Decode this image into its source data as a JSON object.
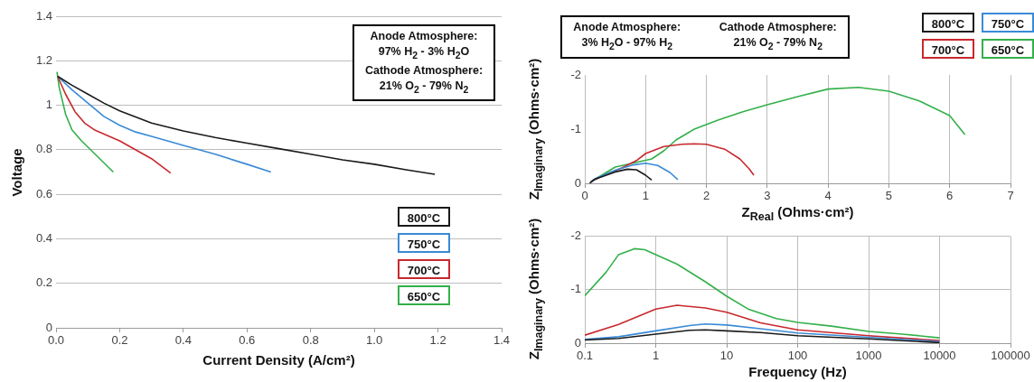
{
  "chart_data": [
    {
      "type": "line",
      "xlabel": "Current Density (A/cm²)",
      "ylabel": "Voltage",
      "xlim": [
        0,
        1.4
      ],
      "ylim": [
        0,
        1.4
      ],
      "xticks": [
        {
          "value": 0,
          "label": "0.0"
        },
        {
          "value": 0.2,
          "label": "0.2"
        },
        {
          "value": 0.4,
          "label": "0.4"
        },
        {
          "value": 0.6,
          "label": "0.6"
        },
        {
          "value": 0.8,
          "label": "0.8"
        },
        {
          "value": 1,
          "label": "1.0"
        },
        {
          "value": 1.2,
          "label": "1.2"
        },
        {
          "value": 1.4,
          "label": "1.4"
        }
      ],
      "yticks": [
        0,
        0.2,
        0.4,
        0.6,
        0.8,
        1,
        1.2,
        1.4
      ],
      "grid": "y",
      "legend": "bottom right",
      "annotations": [
        "Anode Atmosphere:",
        "97% H$_{2}$ - 3% H$_{2}$O",
        "Cathode Atmosphere:",
        "21% O$_{2}$ - 79% N$_{2}$"
      ],
      "series": [
        {
          "name": "800°C",
          "color": "#1a1a1a",
          "x": [
            0.005,
            0.05,
            0.1,
            0.15,
            0.2,
            0.3,
            0.4,
            0.5,
            0.6,
            0.7,
            0.8,
            0.9,
            1.0,
            1.1,
            1.19
          ],
          "values": [
            1.13,
            1.09,
            1.05,
            1.01,
            0.975,
            0.92,
            0.885,
            0.855,
            0.83,
            0.805,
            0.78,
            0.755,
            0.735,
            0.71,
            0.69
          ]
        },
        {
          "name": "750°C",
          "color": "#3a8ad6",
          "x": [
            0.005,
            0.05,
            0.1,
            0.15,
            0.2,
            0.25,
            0.3,
            0.4,
            0.5,
            0.6,
            0.675
          ],
          "values": [
            1.13,
            1.07,
            1.01,
            0.95,
            0.91,
            0.88,
            0.86,
            0.82,
            0.78,
            0.735,
            0.7
          ]
        },
        {
          "name": "700°C",
          "color": "#c8282e",
          "x": [
            0.005,
            0.03,
            0.06,
            0.09,
            0.12,
            0.2,
            0.3,
            0.36
          ],
          "values": [
            1.13,
            1.05,
            0.97,
            0.92,
            0.89,
            0.84,
            0.76,
            0.695
          ]
        },
        {
          "name": "650°C",
          "color": "#33b04a",
          "x": [
            0.003,
            0.01,
            0.03,
            0.05,
            0.08,
            0.13,
            0.18
          ],
          "values": [
            1.15,
            1.08,
            0.96,
            0.89,
            0.84,
            0.77,
            0.7
          ]
        }
      ]
    },
    {
      "type": "line",
      "xlabel": "Z$_{Real}$ (Ohms·cm²)",
      "ylabel": "Z$_{Imaginary}$ (Ohms·cm²)",
      "xlim": [
        0,
        7
      ],
      "ylim": [
        0,
        -2
      ],
      "xticks": [
        0,
        1,
        2,
        3,
        4,
        5,
        6,
        7
      ],
      "yticks": [
        0,
        -1,
        -2
      ],
      "grid": "x",
      "legend": "top right",
      "annotations": [
        "Anode Atmosphere:",
        "3% H$_{2}$O - 97% H$_{2}$",
        "Cathode Atmosphere:",
        "21% O$_{2}$ - 79% N$_{2}$"
      ],
      "series": [
        {
          "name": "800°C",
          "color": "#1a1a1a",
          "x": [
            0.08,
            0.15,
            0.3,
            0.5,
            0.7,
            0.85,
            1.0,
            1.1
          ],
          "values": [
            0,
            -0.07,
            -0.13,
            -0.21,
            -0.26,
            -0.25,
            -0.15,
            -0.06
          ]
        },
        {
          "name": "750°C",
          "color": "#3a8ad6",
          "x": [
            0.1,
            0.2,
            0.5,
            0.8,
            1.0,
            1.2,
            1.4,
            1.53
          ],
          "values": [
            -0.02,
            -0.1,
            -0.24,
            -0.34,
            -0.37,
            -0.33,
            -0.2,
            -0.07
          ]
        },
        {
          "name": "700°C",
          "color": "#c8282e",
          "x": [
            0.1,
            0.3,
            0.6,
            0.85,
            1.0,
            1.3,
            1.6,
            1.8,
            2.0,
            2.3,
            2.55,
            2.7,
            2.78
          ],
          "values": [
            -0.03,
            -0.14,
            -0.28,
            -0.42,
            -0.55,
            -0.68,
            -0.72,
            -0.73,
            -0.72,
            -0.63,
            -0.45,
            -0.27,
            -0.15
          ]
        },
        {
          "name": "650°C",
          "color": "#33b04a",
          "x": [
            0.1,
            0.5,
            0.9,
            1.1,
            1.3,
            1.5,
            1.8,
            2.2,
            2.6,
            3.0,
            3.5,
            4.0,
            4.5,
            5.0,
            5.5,
            6.0,
            6.25
          ],
          "values": [
            -0.03,
            -0.3,
            -0.4,
            -0.45,
            -0.6,
            -0.8,
            -1.0,
            -1.17,
            -1.32,
            -1.45,
            -1.6,
            -1.74,
            -1.77,
            -1.7,
            -1.52,
            -1.25,
            -0.9
          ]
        }
      ]
    },
    {
      "type": "line",
      "xlabel": "Frequency (Hz)",
      "ylabel": "Z$_{Imaginary}$ (Ohms·cm²)",
      "log": "x",
      "xlim": [
        0.1,
        100000
      ],
      "ylim": [
        0,
        -2
      ],
      "xticks": [
        0.1,
        1,
        10,
        100,
        1000,
        10000,
        100000
      ],
      "yticks": [
        0,
        -1,
        -2
      ],
      "grid": true,
      "series": [
        {
          "color": "#1a1a1a",
          "x": [
            0.1,
            0.3,
            1,
            3,
            5,
            10,
            30,
            100,
            1000,
            10000
          ],
          "values": [
            -0.06,
            -0.09,
            -0.17,
            -0.24,
            -0.25,
            -0.23,
            -0.2,
            -0.14,
            -0.08,
            -0.01
          ]
        },
        {
          "color": "#3a8ad6",
          "x": [
            0.1,
            0.3,
            1,
            3,
            5,
            10,
            30,
            100,
            1000,
            10000
          ],
          "values": [
            -0.07,
            -0.12,
            -0.23,
            -0.33,
            -0.36,
            -0.34,
            -0.27,
            -0.19,
            -0.11,
            -0.03
          ]
        },
        {
          "color": "#c8282e",
          "x": [
            0.1,
            0.3,
            1,
            2,
            5,
            10,
            30,
            100,
            1000,
            10000
          ],
          "values": [
            -0.15,
            -0.35,
            -0.64,
            -0.71,
            -0.66,
            -0.58,
            -0.38,
            -0.25,
            -0.14,
            -0.05
          ]
        },
        {
          "color": "#33b04a",
          "x": [
            0.1,
            0.2,
            0.3,
            0.5,
            0.7,
            1,
            2,
            5,
            10,
            20,
            50,
            100,
            300,
            1000,
            3000,
            10000
          ],
          "values": [
            -0.89,
            -1.33,
            -1.66,
            -1.77,
            -1.75,
            -1.66,
            -1.48,
            -1.15,
            -0.88,
            -0.64,
            -0.46,
            -0.39,
            -0.32,
            -0.22,
            -0.17,
            -0.1
          ]
        }
      ]
    }
  ]
}
